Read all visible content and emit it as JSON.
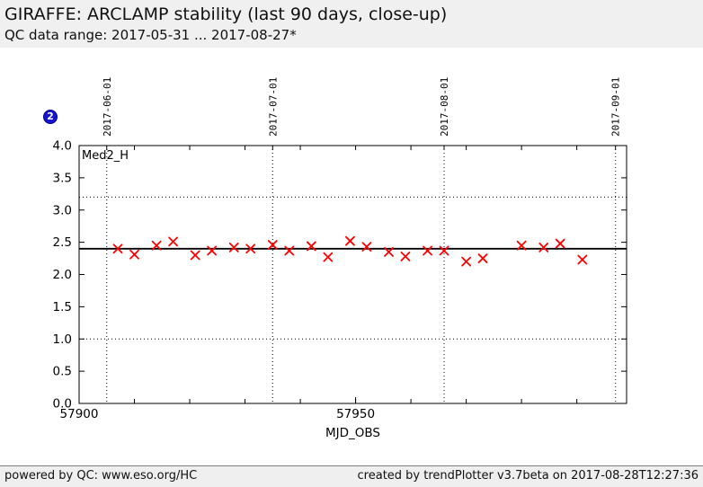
{
  "header": {
    "title": "GIRAFFE: ARCLAMP stability (last 90 days, close-up)",
    "subtitle": "QC data range: 2017-05-31 ... 2017-08-27*"
  },
  "badge": {
    "label": "2",
    "fill": "#1414d2"
  },
  "chart_data": {
    "type": "scatter",
    "series_label": "Med2_H",
    "xlabel": "MJD_OBS",
    "xlim": [
      57900,
      57999
    ],
    "ylim": [
      0.0,
      4.0
    ],
    "ytick_step": 0.5,
    "xticks_labeled": [
      57900,
      57950
    ],
    "xticks_minor_step": 10,
    "x2_dates": [
      {
        "label": "2017-06-01",
        "mjd": 57905
      },
      {
        "label": "2017-07-01",
        "mjd": 57935
      },
      {
        "label": "2017-08-01",
        "mjd": 57966
      },
      {
        "label": "2017-09-01",
        "mjd": 57997
      }
    ],
    "reference_line": 2.4,
    "threshold_lines": [
      1.0,
      3.2
    ],
    "grid": "off",
    "marker": "x",
    "marker_color": "#ff0000",
    "points": [
      [
        57907,
        2.4
      ],
      [
        57910,
        2.31
      ],
      [
        57914,
        2.45
      ],
      [
        57917,
        2.51
      ],
      [
        57921,
        2.3
      ],
      [
        57924,
        2.37
      ],
      [
        57928,
        2.42
      ],
      [
        57931,
        2.4
      ],
      [
        57935,
        2.46
      ],
      [
        57938,
        2.37
      ],
      [
        57942,
        2.44
      ],
      [
        57945,
        2.27
      ],
      [
        57949,
        2.52
      ],
      [
        57952,
        2.43
      ],
      [
        57956,
        2.35
      ],
      [
        57959,
        2.28
      ],
      [
        57963,
        2.37
      ],
      [
        57966,
        2.37
      ],
      [
        57970,
        2.2
      ],
      [
        57973,
        2.25
      ],
      [
        57980,
        2.45
      ],
      [
        57984,
        2.42
      ],
      [
        57987,
        2.48
      ],
      [
        57991,
        2.23
      ]
    ]
  },
  "footer": {
    "left": "powered by QC: www.eso.org/HC",
    "right": "created by trendPlotter v3.7beta on 2017-08-28T12:27:36"
  }
}
